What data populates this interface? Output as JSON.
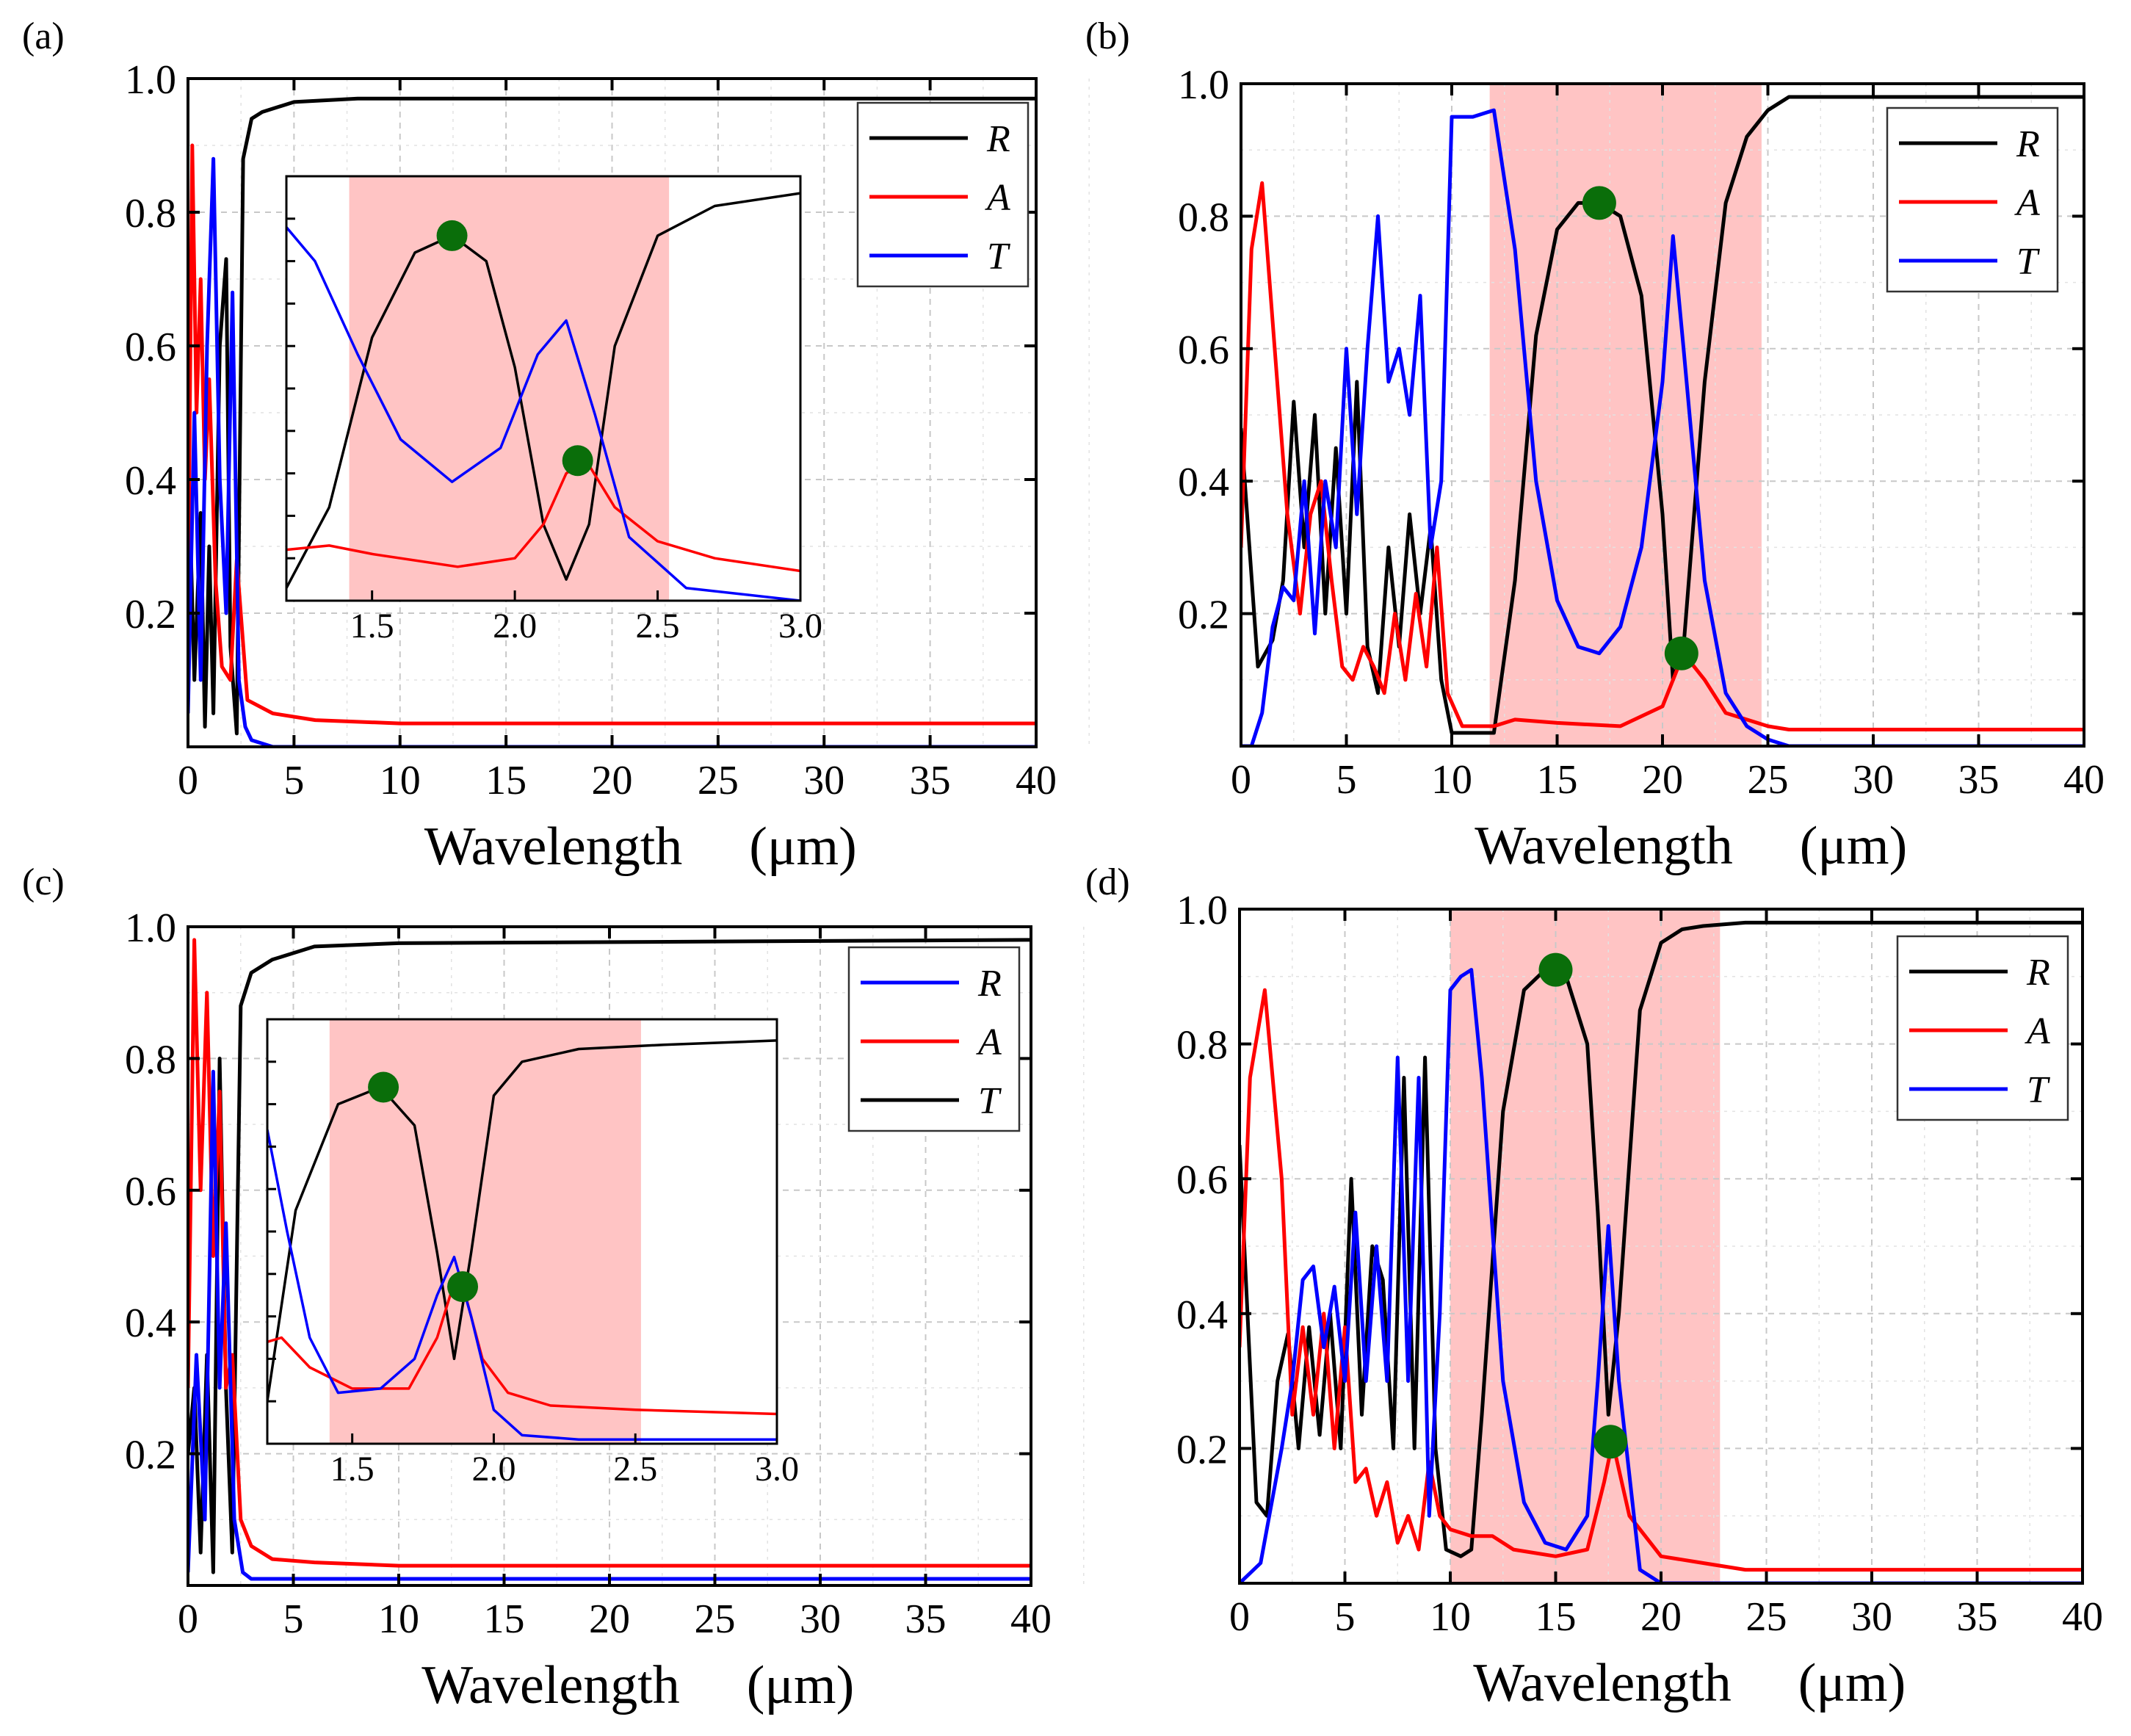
{
  "chart_data": [
    {
      "panel": "(a)",
      "type": "line",
      "xlabel": "Wavelength",
      "xunit": "(μm)",
      "xlim": [
        0,
        40
      ],
      "ylim": [
        0,
        1.0
      ],
      "xticks": [
        "0",
        "5",
        "10",
        "15",
        "20",
        "25",
        "30",
        "35",
        "40"
      ],
      "yticks": [
        "0.2",
        "0.4",
        "0.6",
        "0.8",
        "1.0"
      ],
      "legend": [
        "R",
        "A",
        "T"
      ],
      "legend_colors": [
        "#000000",
        "#ff0000",
        "#0000ff"
      ],
      "legend_position": "top-right",
      "series": [
        {
          "name": "R",
          "color": "#000000",
          "x": [
            0,
            0.3,
            0.6,
            0.8,
            1.0,
            1.2,
            1.5,
            1.8,
            2.0,
            2.3,
            2.6,
            3.0,
            3.5,
            5,
            8,
            40
          ],
          "y": [
            0.45,
            0.1,
            0.35,
            0.03,
            0.3,
            0.05,
            0.6,
            0.73,
            0.15,
            0.02,
            0.88,
            0.94,
            0.95,
            0.965,
            0.97,
            0.97
          ]
        },
        {
          "name": "A",
          "color": "#ff0000",
          "x": [
            0,
            0.2,
            0.4,
            0.6,
            0.8,
            1.0,
            1.3,
            1.6,
            2.0,
            2.3,
            2.8,
            4,
            6,
            10,
            40
          ],
          "y": [
            0.2,
            0.9,
            0.5,
            0.7,
            0.4,
            0.55,
            0.25,
            0.12,
            0.1,
            0.28,
            0.07,
            0.05,
            0.04,
            0.035,
            0.035
          ]
        },
        {
          "name": "T",
          "color": "#0000ff",
          "x": [
            0,
            0.3,
            0.6,
            0.9,
            1.2,
            1.5,
            1.8,
            2.1,
            2.4,
            2.7,
            3.0,
            4,
            40
          ],
          "y": [
            0.05,
            0.5,
            0.1,
            0.6,
            0.88,
            0.4,
            0.2,
            0.68,
            0.1,
            0.03,
            0.01,
            0.0,
            0.0
          ]
        }
      ],
      "inset": {
        "xlim": [
          1.2,
          3.0
        ],
        "xticks": [
          "1.5",
          "2.0",
          "2.5",
          "3.0"
        ],
        "shade_x": [
          1.42,
          2.54
        ],
        "series": [
          {
            "name": "R",
            "color": "#000000",
            "x": [
              1.2,
              1.35,
              1.5,
              1.65,
              1.78,
              1.9,
              2.0,
              2.1,
              2.18,
              2.26,
              2.35,
              2.5,
              2.7,
              3.0
            ],
            "y": [
              0.03,
              0.22,
              0.62,
              0.82,
              0.86,
              0.8,
              0.55,
              0.18,
              0.05,
              0.18,
              0.6,
              0.86,
              0.93,
              0.96
            ]
          },
          {
            "name": "A",
            "color": "#ff0000",
            "x": [
              1.2,
              1.35,
              1.5,
              1.8,
              2.0,
              2.1,
              2.18,
              2.25,
              2.35,
              2.5,
              2.7,
              3.0
            ],
            "y": [
              0.12,
              0.13,
              0.11,
              0.08,
              0.1,
              0.18,
              0.3,
              0.33,
              0.22,
              0.14,
              0.1,
              0.07
            ]
          },
          {
            "name": "T",
            "color": "#0000ff",
            "x": [
              1.2,
              1.3,
              1.45,
              1.6,
              1.78,
              1.95,
              2.08,
              2.18,
              2.28,
              2.4,
              2.6,
              3.0
            ],
            "y": [
              0.88,
              0.8,
              0.58,
              0.38,
              0.28,
              0.36,
              0.58,
              0.66,
              0.44,
              0.15,
              0.03,
              0.0
            ]
          }
        ],
        "markers": [
          {
            "x": 1.78,
            "y": 0.86
          },
          {
            "x": 2.22,
            "y": 0.33
          }
        ]
      }
    },
    {
      "panel": "(b)",
      "type": "line",
      "xlabel": "Wavelength",
      "xunit": "(μm)",
      "xlim": [
        0,
        40
      ],
      "ylim": [
        0,
        1.0
      ],
      "xticks": [
        "0",
        "5",
        "10",
        "15",
        "20",
        "25",
        "30",
        "35",
        "40"
      ],
      "yticks": [
        "0.2",
        "0.4",
        "0.6",
        "0.8",
        "1.0"
      ],
      "legend": [
        "R",
        "A",
        "T"
      ],
      "legend_colors": [
        "#000000",
        "#ff0000",
        "#0000ff"
      ],
      "legend_position": "top-right",
      "shade_x": [
        11.8,
        24.7
      ],
      "series": [
        {
          "name": "R",
          "color": "#000000",
          "x": [
            0,
            0.8,
            1.5,
            2.0,
            2.5,
            3.0,
            3.5,
            4.0,
            4.5,
            5.0,
            5.5,
            6.0,
            6.5,
            7.0,
            7.5,
            8.0,
            8.5,
            9.0,
            9.5,
            10.0,
            11.0,
            12.0,
            13.0,
            14.0,
            15.0,
            16.0,
            17.0,
            18.0,
            19.0,
            20.0,
            20.5,
            21.0,
            22.0,
            23.0,
            24.0,
            25.0,
            26.0,
            27.0,
            40.0
          ],
          "y": [
            0.48,
            0.12,
            0.16,
            0.25,
            0.52,
            0.3,
            0.5,
            0.2,
            0.45,
            0.2,
            0.55,
            0.15,
            0.08,
            0.3,
            0.15,
            0.35,
            0.2,
            0.33,
            0.1,
            0.02,
            0.02,
            0.02,
            0.25,
            0.62,
            0.78,
            0.82,
            0.82,
            0.8,
            0.68,
            0.35,
            0.1,
            0.15,
            0.55,
            0.82,
            0.92,
            0.96,
            0.98,
            0.98,
            0.98
          ]
        },
        {
          "name": "A",
          "color": "#ff0000",
          "x": [
            0,
            0.5,
            1.0,
            1.6,
            2.2,
            2.8,
            3.3,
            3.8,
            4.3,
            4.8,
            5.3,
            5.8,
            6.3,
            6.8,
            7.3,
            7.8,
            8.3,
            8.8,
            9.3,
            9.8,
            10.5,
            12.0,
            13.0,
            15.0,
            18.0,
            20.0,
            21.0,
            22.0,
            23.0,
            25.0,
            26.0,
            40.0
          ],
          "y": [
            0.3,
            0.75,
            0.85,
            0.6,
            0.35,
            0.2,
            0.35,
            0.4,
            0.25,
            0.12,
            0.1,
            0.15,
            0.12,
            0.08,
            0.2,
            0.1,
            0.23,
            0.12,
            0.3,
            0.08,
            0.03,
            0.03,
            0.04,
            0.035,
            0.03,
            0.06,
            0.14,
            0.1,
            0.05,
            0.03,
            0.025,
            0.025
          ]
        },
        {
          "name": "T",
          "color": "#0000ff",
          "x": [
            0,
            0.5,
            1.0,
            1.5,
            2.0,
            2.5,
            3.0,
            3.5,
            4.0,
            4.5,
            5.0,
            5.5,
            6.0,
            6.5,
            7.0,
            7.5,
            8.0,
            8.5,
            9.0,
            9.5,
            10.0,
            11.0,
            12.0,
            13.0,
            14.0,
            15.0,
            16.0,
            17.0,
            18.0,
            19.0,
            20.0,
            20.5,
            21.0,
            22.0,
            23.0,
            24.0,
            25.0,
            26.0,
            40.0
          ],
          "y": [
            0.0,
            0.0,
            0.05,
            0.18,
            0.24,
            0.22,
            0.4,
            0.17,
            0.4,
            0.3,
            0.6,
            0.35,
            0.6,
            0.8,
            0.55,
            0.6,
            0.5,
            0.68,
            0.3,
            0.4,
            0.95,
            0.95,
            0.96,
            0.75,
            0.4,
            0.22,
            0.15,
            0.14,
            0.18,
            0.3,
            0.55,
            0.77,
            0.6,
            0.25,
            0.08,
            0.03,
            0.01,
            0.0,
            0.0
          ]
        }
      ],
      "markers": [
        {
          "x": 17,
          "y": 0.82
        },
        {
          "x": 20.9,
          "y": 0.14
        }
      ]
    },
    {
      "panel": "(c)",
      "type": "line",
      "xlabel": "Wavelength",
      "xunit": "(μm)",
      "xlim": [
        0,
        40
      ],
      "ylim": [
        0,
        1.0
      ],
      "xticks": [
        "0",
        "5",
        "10",
        "15",
        "20",
        "25",
        "30",
        "35",
        "40"
      ],
      "yticks": [
        "0.2",
        "0.4",
        "0.6",
        "0.8",
        "1.0"
      ],
      "legend": [
        "R",
        "A",
        "T"
      ],
      "legend_colors": [
        "#0000ff",
        "#ff0000",
        "#000000"
      ],
      "legend_position": "top-right",
      "series": [
        {
          "name": "T",
          "color": "#000000",
          "x": [
            0,
            0.3,
            0.6,
            0.9,
            1.2,
            1.5,
            1.8,
            2.1,
            2.5,
            3.0,
            4.0,
            6.0,
            10.0,
            40.0
          ],
          "y": [
            0.2,
            0.3,
            0.05,
            0.35,
            0.02,
            0.8,
            0.3,
            0.05,
            0.88,
            0.93,
            0.95,
            0.97,
            0.975,
            0.98
          ]
        },
        {
          "name": "A",
          "color": "#ff0000",
          "x": [
            0,
            0.3,
            0.6,
            0.9,
            1.2,
            1.5,
            1.8,
            2.1,
            2.5,
            3.0,
            4.0,
            6.0,
            10.0,
            40.0
          ],
          "y": [
            0.3,
            0.98,
            0.6,
            0.9,
            0.5,
            0.75,
            0.3,
            0.35,
            0.1,
            0.06,
            0.04,
            0.035,
            0.03,
            0.03
          ]
        },
        {
          "name": "R",
          "color": "#0000ff",
          "x": [
            0,
            0.4,
            0.8,
            1.2,
            1.5,
            1.8,
            2.2,
            2.6,
            3.0,
            4.0,
            40.0
          ],
          "y": [
            0.02,
            0.35,
            0.1,
            0.78,
            0.3,
            0.55,
            0.1,
            0.02,
            0.01,
            0.01,
            0.01
          ]
        }
      ],
      "inset": {
        "xlim": [
          1.2,
          3.0
        ],
        "xticks": [
          "1.5",
          "2.0",
          "2.5",
          "3.0"
        ],
        "shade_x": [
          1.42,
          2.52
        ],
        "series": [
          {
            "name": "T",
            "color": "#000000",
            "x": [
              1.2,
              1.3,
              1.45,
              1.6,
              1.72,
              1.8,
              1.86,
              1.92,
              2.0,
              2.1,
              2.3,
              2.6,
              3.0
            ],
            "y": [
              0.1,
              0.55,
              0.8,
              0.84,
              0.75,
              0.45,
              0.2,
              0.45,
              0.82,
              0.9,
              0.93,
              0.94,
              0.95
            ]
          },
          {
            "name": "A",
            "color": "#ff0000",
            "x": [
              1.2,
              1.25,
              1.35,
              1.5,
              1.7,
              1.8,
              1.86,
              1.9,
              1.96,
              2.05,
              2.2,
              2.5,
              3.0
            ],
            "y": [
              0.24,
              0.25,
              0.18,
              0.13,
              0.13,
              0.25,
              0.38,
              0.35,
              0.2,
              0.12,
              0.09,
              0.08,
              0.07
            ]
          },
          {
            "name": "R",
            "color": "#0000ff",
            "x": [
              1.2,
              1.27,
              1.35,
              1.45,
              1.6,
              1.72,
              1.8,
              1.86,
              1.92,
              2.0,
              2.1,
              2.3,
              3.0
            ],
            "y": [
              0.74,
              0.5,
              0.25,
              0.12,
              0.13,
              0.2,
              0.35,
              0.44,
              0.3,
              0.08,
              0.02,
              0.01,
              0.01
            ]
          }
        ],
        "markers": [
          {
            "x": 1.61,
            "y": 0.84
          },
          {
            "x": 1.89,
            "y": 0.37
          }
        ]
      }
    },
    {
      "panel": "(d)",
      "type": "line",
      "xlabel": "Wavelength",
      "xunit": "(μm)",
      "xlim": [
        0,
        40
      ],
      "ylim": [
        0,
        1.0
      ],
      "xticks": [
        "0",
        "5",
        "10",
        "15",
        "20",
        "25",
        "30",
        "35",
        "40"
      ],
      "yticks": [
        "0.2",
        "0.4",
        "0.6",
        "0.8",
        "1.0"
      ],
      "legend": [
        "R",
        "A",
        "T"
      ],
      "legend_colors": [
        "#000000",
        "#ff0000",
        "#0000ff"
      ],
      "legend_position": "top-right",
      "shade_x": [
        10.0,
        22.8
      ],
      "series": [
        {
          "name": "R",
          "color": "#000000",
          "x": [
            0,
            0.8,
            1.3,
            1.8,
            2.3,
            2.8,
            3.3,
            3.8,
            4.3,
            4.8,
            5.3,
            5.8,
            6.3,
            6.8,
            7.3,
            7.8,
            8.3,
            8.8,
            9.3,
            9.8,
            10.5,
            11.0,
            11.5,
            12.5,
            13.5,
            14.5,
            15.5,
            16.5,
            17.0,
            17.5,
            18.0,
            19.0,
            20.0,
            21.0,
            22.0,
            24.0,
            40.0
          ],
          "y": [
            0.65,
            0.12,
            0.1,
            0.3,
            0.37,
            0.2,
            0.38,
            0.22,
            0.4,
            0.2,
            0.6,
            0.25,
            0.5,
            0.45,
            0.2,
            0.75,
            0.2,
            0.78,
            0.2,
            0.05,
            0.04,
            0.05,
            0.25,
            0.7,
            0.88,
            0.91,
            0.9,
            0.8,
            0.55,
            0.25,
            0.4,
            0.85,
            0.95,
            0.97,
            0.975,
            0.98,
            0.98
          ]
        },
        {
          "name": "A",
          "color": "#ff0000",
          "x": [
            0,
            0.5,
            1.2,
            2.0,
            2.5,
            3.0,
            3.5,
            4.0,
            4.5,
            5.0,
            5.5,
            6.0,
            6.5,
            7.0,
            7.5,
            8.0,
            8.5,
            9.0,
            9.5,
            10.0,
            11.0,
            12.0,
            13.0,
            15.0,
            16.5,
            17.3,
            17.7,
            18.5,
            20.0,
            22.0,
            24.0,
            40.0
          ],
          "y": [
            0.35,
            0.75,
            0.88,
            0.6,
            0.25,
            0.38,
            0.25,
            0.4,
            0.2,
            0.38,
            0.15,
            0.17,
            0.1,
            0.15,
            0.06,
            0.1,
            0.05,
            0.18,
            0.1,
            0.08,
            0.07,
            0.07,
            0.05,
            0.04,
            0.05,
            0.15,
            0.21,
            0.1,
            0.04,
            0.03,
            0.02,
            0.02
          ]
        },
        {
          "name": "T",
          "color": "#0000ff",
          "x": [
            0,
            1.0,
            2.0,
            2.5,
            3.0,
            3.5,
            4.0,
            4.5,
            5.0,
            5.5,
            6.0,
            6.5,
            7.0,
            7.5,
            8.0,
            8.5,
            9.0,
            9.5,
            10.0,
            10.5,
            11.0,
            11.5,
            12.5,
            13.5,
            14.5,
            15.5,
            16.5,
            17.0,
            17.5,
            18.0,
            19.0,
            20.0,
            22.0,
            40.0
          ],
          "y": [
            0.0,
            0.03,
            0.2,
            0.3,
            0.45,
            0.47,
            0.35,
            0.44,
            0.3,
            0.55,
            0.3,
            0.5,
            0.3,
            0.78,
            0.3,
            0.75,
            0.1,
            0.4,
            0.88,
            0.9,
            0.91,
            0.75,
            0.3,
            0.12,
            0.06,
            0.05,
            0.1,
            0.3,
            0.53,
            0.3,
            0.02,
            0.0,
            0.0,
            0.0
          ]
        }
      ],
      "markers": [
        {
          "x": 15,
          "y": 0.91
        },
        {
          "x": 17.6,
          "y": 0.21
        }
      ]
    }
  ]
}
